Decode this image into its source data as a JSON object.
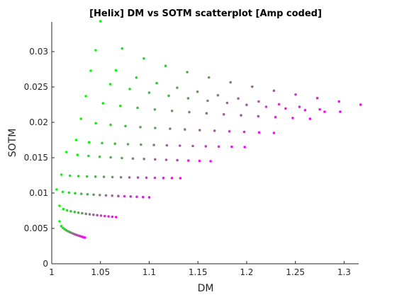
{
  "chart_data": {
    "type": "scatter",
    "title": "[Helix] DM vs SOTM scatterplot [Amp coded]",
    "xlabel": "DM",
    "ylabel": "SOTM",
    "xlim": [
      1,
      1.315
    ],
    "ylim": [
      0,
      0.0342
    ],
    "xticks": [
      "1",
      "1.05",
      "1.1",
      "1.15",
      "1.2",
      "1.25",
      "1.3"
    ],
    "yticks": [
      "0",
      "0.005",
      "0.01",
      "0.015",
      "0.02",
      "0.025",
      "0.03"
    ],
    "grid": false,
    "color_scale": {
      "low": "#00ff00",
      "mid": "#808080",
      "high": "#ff00ff"
    },
    "series": [
      {
        "start": [
          1.008,
          0.006
        ],
        "end": [
          1.034,
          0.0037
        ],
        "n": 16
      },
      {
        "start": [
          1.008,
          0.0082
        ],
        "end": [
          1.066,
          0.0066
        ],
        "n": 16
      },
      {
        "start": [
          1.005,
          0.0105
        ],
        "end": [
          1.1,
          0.0094
        ],
        "n": 16
      },
      {
        "start": [
          1.01,
          0.0126
        ],
        "end": [
          1.132,
          0.0121
        ],
        "n": 15
      },
      {
        "start": [
          1.015,
          0.0158
        ],
        "end": [
          1.163,
          0.0145
        ],
        "n": 14
      },
      {
        "start": [
          1.025,
          0.0175
        ],
        "end": [
          1.198,
          0.0165
        ],
        "n": 14
      },
      {
        "start": [
          1.03,
          0.0205
        ],
        "end": [
          1.228,
          0.0185
        ],
        "n": 14
      },
      {
        "start": [
          1.035,
          0.0237
        ],
        "end": [
          1.265,
          0.0205
        ],
        "n": 14
      },
      {
        "start": [
          1.04,
          0.0273
        ],
        "end": [
          1.28,
          0.0215
        ],
        "n": 13
      },
      {
        "start": [
          1.045,
          0.0302
        ],
        "end": [
          1.296,
          0.0215
        ],
        "n": 13
      },
      {
        "start": [
          1.05,
          0.0343
        ],
        "end": [
          1.317,
          0.0225
        ],
        "n": 13
      }
    ]
  }
}
